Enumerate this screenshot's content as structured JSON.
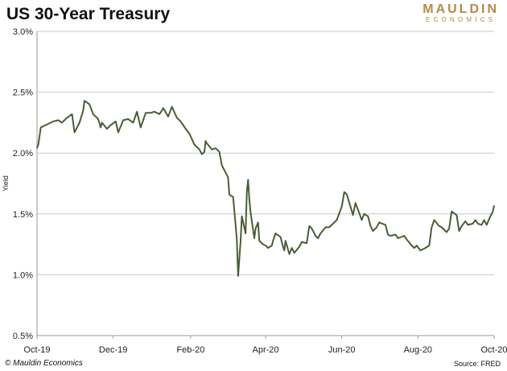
{
  "header": {
    "title": "US 30-Year Treasury",
    "logo_top": "MAULDIN",
    "logo_bottom": "ECONOMICS"
  },
  "footer": {
    "copyright": "© Mauldin Economics",
    "source": "Source: FRED"
  },
  "colors": {
    "line": "#4a5e35",
    "grid": "#c8c8c8",
    "logo": "#b58a43"
  },
  "chart_data": {
    "type": "line",
    "title": "US 30-Year Treasury",
    "xlabel": "",
    "ylabel": "Yield",
    "ylim": [
      0.5,
      3.0
    ],
    "yticks": [
      "0.5%",
      "1.0%",
      "1.5%",
      "2.0%",
      "2.5%",
      "3.0%"
    ],
    "xlim": [
      "2019-10-01",
      "2020-10-01"
    ],
    "xticks": [
      {
        "date": "2019-10-01",
        "label": "Oct-19"
      },
      {
        "date": "2019-12-01",
        "label": "Dec-19"
      },
      {
        "date": "2020-02-01",
        "label": "Feb-20"
      },
      {
        "date": "2020-04-01",
        "label": "Apr-20"
      },
      {
        "date": "2020-06-01",
        "label": "Jun-20"
      },
      {
        "date": "2020-08-01",
        "label": "Aug-20"
      },
      {
        "date": "2020-10-01",
        "label": "Oct-20"
      }
    ],
    "grid": true,
    "series": [
      {
        "values": [
          [
            "2019-10-01",
            2.04
          ],
          [
            "2019-10-02",
            2.07
          ],
          [
            "2019-10-04",
            2.21
          ],
          [
            "2019-10-08",
            2.23
          ],
          [
            "2019-10-14",
            2.26
          ],
          [
            "2019-10-18",
            2.27
          ],
          [
            "2019-10-21",
            2.25
          ],
          [
            "2019-10-25",
            2.29
          ],
          [
            "2019-10-29",
            2.32
          ],
          [
            "2019-10-31",
            2.17
          ],
          [
            "2019-11-04",
            2.25
          ],
          [
            "2019-11-07",
            2.35
          ],
          [
            "2019-11-08",
            2.43
          ],
          [
            "2019-11-12",
            2.4
          ],
          [
            "2019-11-15",
            2.32
          ],
          [
            "2019-11-19",
            2.28
          ],
          [
            "2019-11-21",
            2.21
          ],
          [
            "2019-11-22",
            2.25
          ],
          [
            "2019-11-26",
            2.2
          ],
          [
            "2019-11-29",
            2.23
          ],
          [
            "2019-12-03",
            2.26
          ],
          [
            "2019-12-05",
            2.17
          ],
          [
            "2019-12-09",
            2.27
          ],
          [
            "2019-12-13",
            2.28
          ],
          [
            "2019-12-17",
            2.25
          ],
          [
            "2019-12-19",
            2.31
          ],
          [
            "2019-12-20",
            2.34
          ],
          [
            "2019-12-23",
            2.21
          ],
          [
            "2019-12-27",
            2.33
          ],
          [
            "2019-12-31",
            2.33
          ],
          [
            "2020-01-03",
            2.34
          ],
          [
            "2020-01-07",
            2.32
          ],
          [
            "2020-01-09",
            2.35
          ],
          [
            "2020-01-10",
            2.37
          ],
          [
            "2020-01-14",
            2.3
          ],
          [
            "2020-01-17",
            2.38
          ],
          [
            "2020-01-21",
            2.29
          ],
          [
            "2020-01-24",
            2.26
          ],
          [
            "2020-01-28",
            2.2
          ],
          [
            "2020-01-31",
            2.16
          ],
          [
            "2020-02-04",
            2.07
          ],
          [
            "2020-02-06",
            2.05
          ],
          [
            "2020-02-08",
            2.03
          ],
          [
            "2020-02-10",
            1.99
          ],
          [
            "2020-02-12",
            2.01
          ],
          [
            "2020-02-13",
            2.1
          ],
          [
            "2020-02-14",
            2.08
          ],
          [
            "2020-02-18",
            2.03
          ],
          [
            "2020-02-21",
            2.04
          ],
          [
            "2020-02-24",
            2.01
          ],
          [
            "2020-02-26",
            1.9
          ],
          [
            "2020-02-28",
            1.86
          ],
          [
            "2020-03-02",
            1.8
          ],
          [
            "2020-03-03",
            1.66
          ],
          [
            "2020-03-04",
            1.65
          ],
          [
            "2020-03-06",
            1.64
          ],
          [
            "2020-03-09",
            1.29
          ],
          [
            "2020-03-10",
            0.99
          ],
          [
            "2020-03-12",
            1.28
          ],
          [
            "2020-03-13",
            1.48
          ],
          [
            "2020-03-16",
            1.34
          ],
          [
            "2020-03-17",
            1.68
          ],
          [
            "2020-03-18",
            1.78
          ],
          [
            "2020-03-19",
            1.62
          ],
          [
            "2020-03-20",
            1.51
          ],
          [
            "2020-03-23",
            1.3
          ],
          [
            "2020-03-24",
            1.38
          ],
          [
            "2020-03-26",
            1.43
          ],
          [
            "2020-03-27",
            1.28
          ],
          [
            "2020-03-30",
            1.25
          ],
          [
            "2020-04-01",
            1.24
          ],
          [
            "2020-04-03",
            1.22
          ],
          [
            "2020-04-06",
            1.24
          ],
          [
            "2020-04-07",
            1.28
          ],
          [
            "2020-04-09",
            1.34
          ],
          [
            "2020-04-13",
            1.31
          ],
          [
            "2020-04-15",
            1.23
          ],
          [
            "2020-04-16",
            1.2
          ],
          [
            "2020-04-17",
            1.28
          ],
          [
            "2020-04-20",
            1.17
          ],
          [
            "2020-04-22",
            1.22
          ],
          [
            "2020-04-24",
            1.18
          ],
          [
            "2020-04-28",
            1.23
          ],
          [
            "2020-04-30",
            1.27
          ],
          [
            "2020-05-04",
            1.26
          ],
          [
            "2020-05-06",
            1.4
          ],
          [
            "2020-05-08",
            1.38
          ],
          [
            "2020-05-11",
            1.32
          ],
          [
            "2020-05-13",
            1.3
          ],
          [
            "2020-05-15",
            1.34
          ],
          [
            "2020-05-19",
            1.39
          ],
          [
            "2020-05-22",
            1.39
          ],
          [
            "2020-05-26",
            1.43
          ],
          [
            "2020-05-28",
            1.45
          ],
          [
            "2020-06-01",
            1.56
          ],
          [
            "2020-06-03",
            1.68
          ],
          [
            "2020-06-05",
            1.66
          ],
          [
            "2020-06-08",
            1.56
          ],
          [
            "2020-06-10",
            1.49
          ],
          [
            "2020-06-12",
            1.59
          ],
          [
            "2020-06-16",
            1.48
          ],
          [
            "2020-06-17",
            1.45
          ],
          [
            "2020-06-19",
            1.5
          ],
          [
            "2020-06-22",
            1.48
          ],
          [
            "2020-06-24",
            1.4
          ],
          [
            "2020-06-26",
            1.36
          ],
          [
            "2020-06-29",
            1.39
          ],
          [
            "2020-07-01",
            1.43
          ],
          [
            "2020-07-06",
            1.41
          ],
          [
            "2020-07-08",
            1.33
          ],
          [
            "2020-07-10",
            1.32
          ],
          [
            "2020-07-14",
            1.33
          ],
          [
            "2020-07-16",
            1.3
          ],
          [
            "2020-07-21",
            1.32
          ],
          [
            "2020-07-23",
            1.29
          ],
          [
            "2020-07-27",
            1.24
          ],
          [
            "2020-07-29",
            1.22
          ],
          [
            "2020-07-31",
            1.24
          ],
          [
            "2020-08-03",
            1.2
          ],
          [
            "2020-08-05",
            1.21
          ],
          [
            "2020-08-07",
            1.22
          ],
          [
            "2020-08-10",
            1.24
          ],
          [
            "2020-08-12",
            1.39
          ],
          [
            "2020-08-14",
            1.45
          ],
          [
            "2020-08-18",
            1.4
          ],
          [
            "2020-08-20",
            1.39
          ],
          [
            "2020-08-24",
            1.35
          ],
          [
            "2020-08-26",
            1.38
          ],
          [
            "2020-08-28",
            1.52
          ],
          [
            "2020-09-01",
            1.49
          ],
          [
            "2020-09-03",
            1.36
          ],
          [
            "2020-09-05",
            1.4
          ],
          [
            "2020-09-08",
            1.44
          ],
          [
            "2020-09-10",
            1.41
          ],
          [
            "2020-09-14",
            1.42
          ],
          [
            "2020-09-16",
            1.45
          ],
          [
            "2020-09-18",
            1.42
          ],
          [
            "2020-09-21",
            1.41
          ],
          [
            "2020-09-23",
            1.45
          ],
          [
            "2020-09-25",
            1.41
          ],
          [
            "2020-09-28",
            1.48
          ],
          [
            "2020-09-30",
            1.52
          ],
          [
            "2020-10-01",
            1.57
          ]
        ]
      }
    ]
  }
}
